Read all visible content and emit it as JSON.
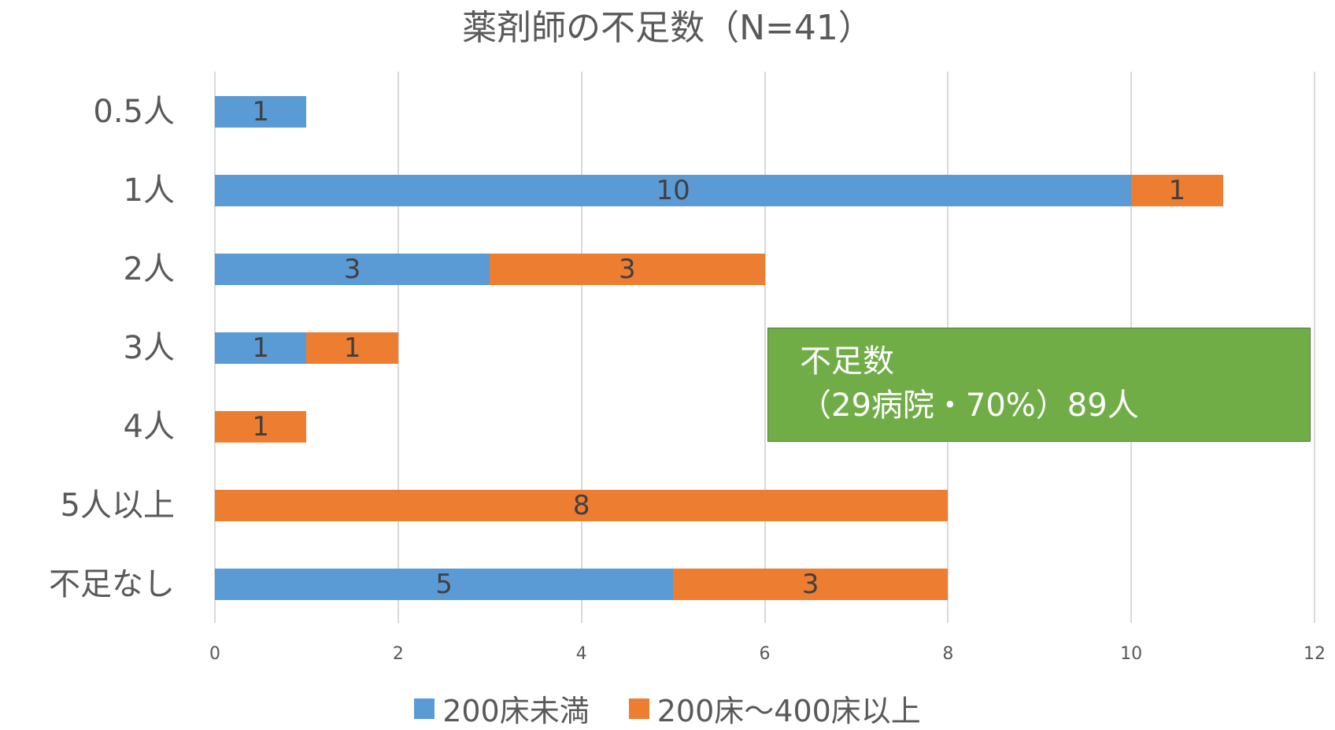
{
  "chart_data": {
    "type": "bar",
    "orientation": "horizontal",
    "stacked": true,
    "title": "薬剤師の不足数（N=41）",
    "categories": [
      "0.5人",
      "1人",
      "2人",
      "3人",
      "4人",
      "5人以上",
      "不足なし"
    ],
    "series": [
      {
        "name": "200床未満",
        "color": "#5b9bd5",
        "values": [
          1,
          10,
          3,
          1,
          0,
          0,
          5
        ]
      },
      {
        "name": "200床～400床以上",
        "color": "#ed7d31",
        "values": [
          0,
          1,
          3,
          1,
          1,
          8,
          3
        ]
      }
    ],
    "xlim": [
      0,
      12
    ],
    "xticks": [
      "0",
      "2",
      "4",
      "6",
      "8",
      "10",
      "12"
    ],
    "grid": true,
    "legend_position": "bottom",
    "annotation": {
      "line1": "不足数",
      "line2": "（29病院・70%）89人",
      "color": "#70ad47"
    }
  }
}
